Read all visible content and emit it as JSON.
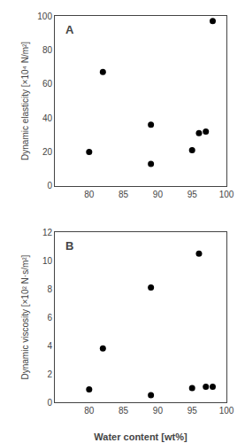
{
  "chart_data": [
    {
      "type": "scatter",
      "annotations": [
        "A"
      ],
      "ylabel": "Dynamic elasticity [×10⁴ N/m²]",
      "x": [
        80,
        82,
        89,
        89,
        95,
        96,
        97,
        98
      ],
      "values": [
        20,
        67,
        36,
        13,
        21,
        31,
        32,
        97
      ],
      "color": "#000000",
      "xlim": [
        75,
        100
      ],
      "ylim": [
        0,
        100
      ],
      "xticks": [
        80,
        85,
        90,
        95,
        100
      ],
      "yticks": [
        0,
        20,
        40,
        60,
        80,
        100
      ],
      "grid": false
    },
    {
      "type": "scatter",
      "annotations": [
        "B"
      ],
      "xlabel": "Water content [wt%]",
      "ylabel": "Dynamic viscosity [×10² N·s/m²]",
      "x": [
        80,
        82,
        89,
        89,
        95,
        96,
        97,
        98
      ],
      "values": [
        0.9,
        3.8,
        8.1,
        0.5,
        1.0,
        10.5,
        1.1,
        1.1
      ],
      "color": "#000000",
      "xlim": [
        75,
        100
      ],
      "ylim": [
        0,
        12
      ],
      "xticks": [
        80,
        85,
        90,
        95,
        100
      ],
      "yticks": [
        0,
        2,
        4,
        6,
        8,
        10,
        12
      ],
      "grid": false
    }
  ]
}
